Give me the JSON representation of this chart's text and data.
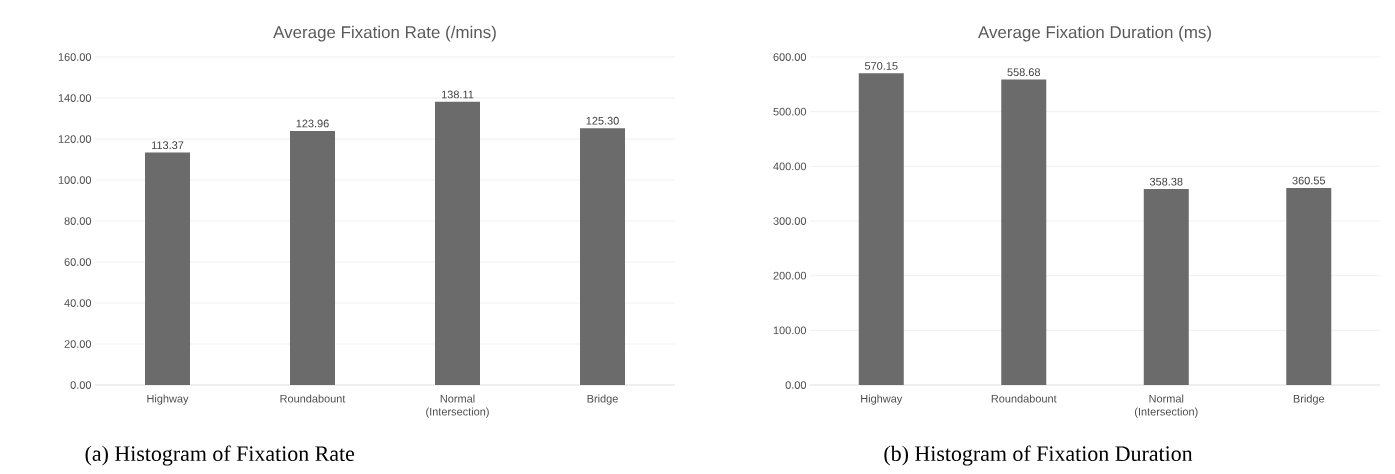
{
  "chart_data": [
    {
      "type": "bar",
      "title": "Average Fixation Rate (/mins)",
      "categories": [
        "Highway",
        "Roundabount",
        "Normal (Intersection)",
        "Bridge"
      ],
      "values": [
        113.37,
        123.96,
        138.11,
        125.3
      ],
      "value_labels": [
        "113.37",
        "123.96",
        "138.11",
        "125.30"
      ],
      "color": "#6b6b6b",
      "ylim": [
        0,
        160
      ],
      "yticks": [
        {
          "value": 0,
          "label": "0.00"
        },
        {
          "value": 20,
          "label": "20.00"
        },
        {
          "value": 40,
          "label": "40.00"
        },
        {
          "value": 60,
          "label": "60.00"
        },
        {
          "value": 80,
          "label": "80.00"
        },
        {
          "value": 100,
          "label": "100.00"
        },
        {
          "value": 120,
          "label": "120.00"
        },
        {
          "value": 140,
          "label": "140.00"
        },
        {
          "value": 160,
          "label": "160.00"
        }
      ],
      "grid": "y",
      "annotations": [
        "(a) Histogram of Fixation Rate"
      ]
    },
    {
      "type": "bar",
      "title": "Average Fixation Duration (ms)",
      "categories": [
        "Highway",
        "Roundabount",
        "Normal (Intersection)",
        "Bridge"
      ],
      "values": [
        570.15,
        558.68,
        358.38,
        360.55
      ],
      "value_labels": [
        "570.15",
        "558.68",
        "358.38",
        "360.55"
      ],
      "color": "#6b6b6b",
      "ylim": [
        0,
        600
      ],
      "yticks": [
        {
          "value": 0,
          "label": "0.00"
        },
        {
          "value": 100,
          "label": "100.00"
        },
        {
          "value": 200,
          "label": "200.00"
        },
        {
          "value": 300,
          "label": "300.00"
        },
        {
          "value": 400,
          "label": "400.00"
        },
        {
          "value": 500,
          "label": "500.00"
        },
        {
          "value": 600,
          "label": "600.00"
        }
      ],
      "grid": "y",
      "annotations": [
        "(b) Histogram of Fixation Duration"
      ]
    }
  ]
}
